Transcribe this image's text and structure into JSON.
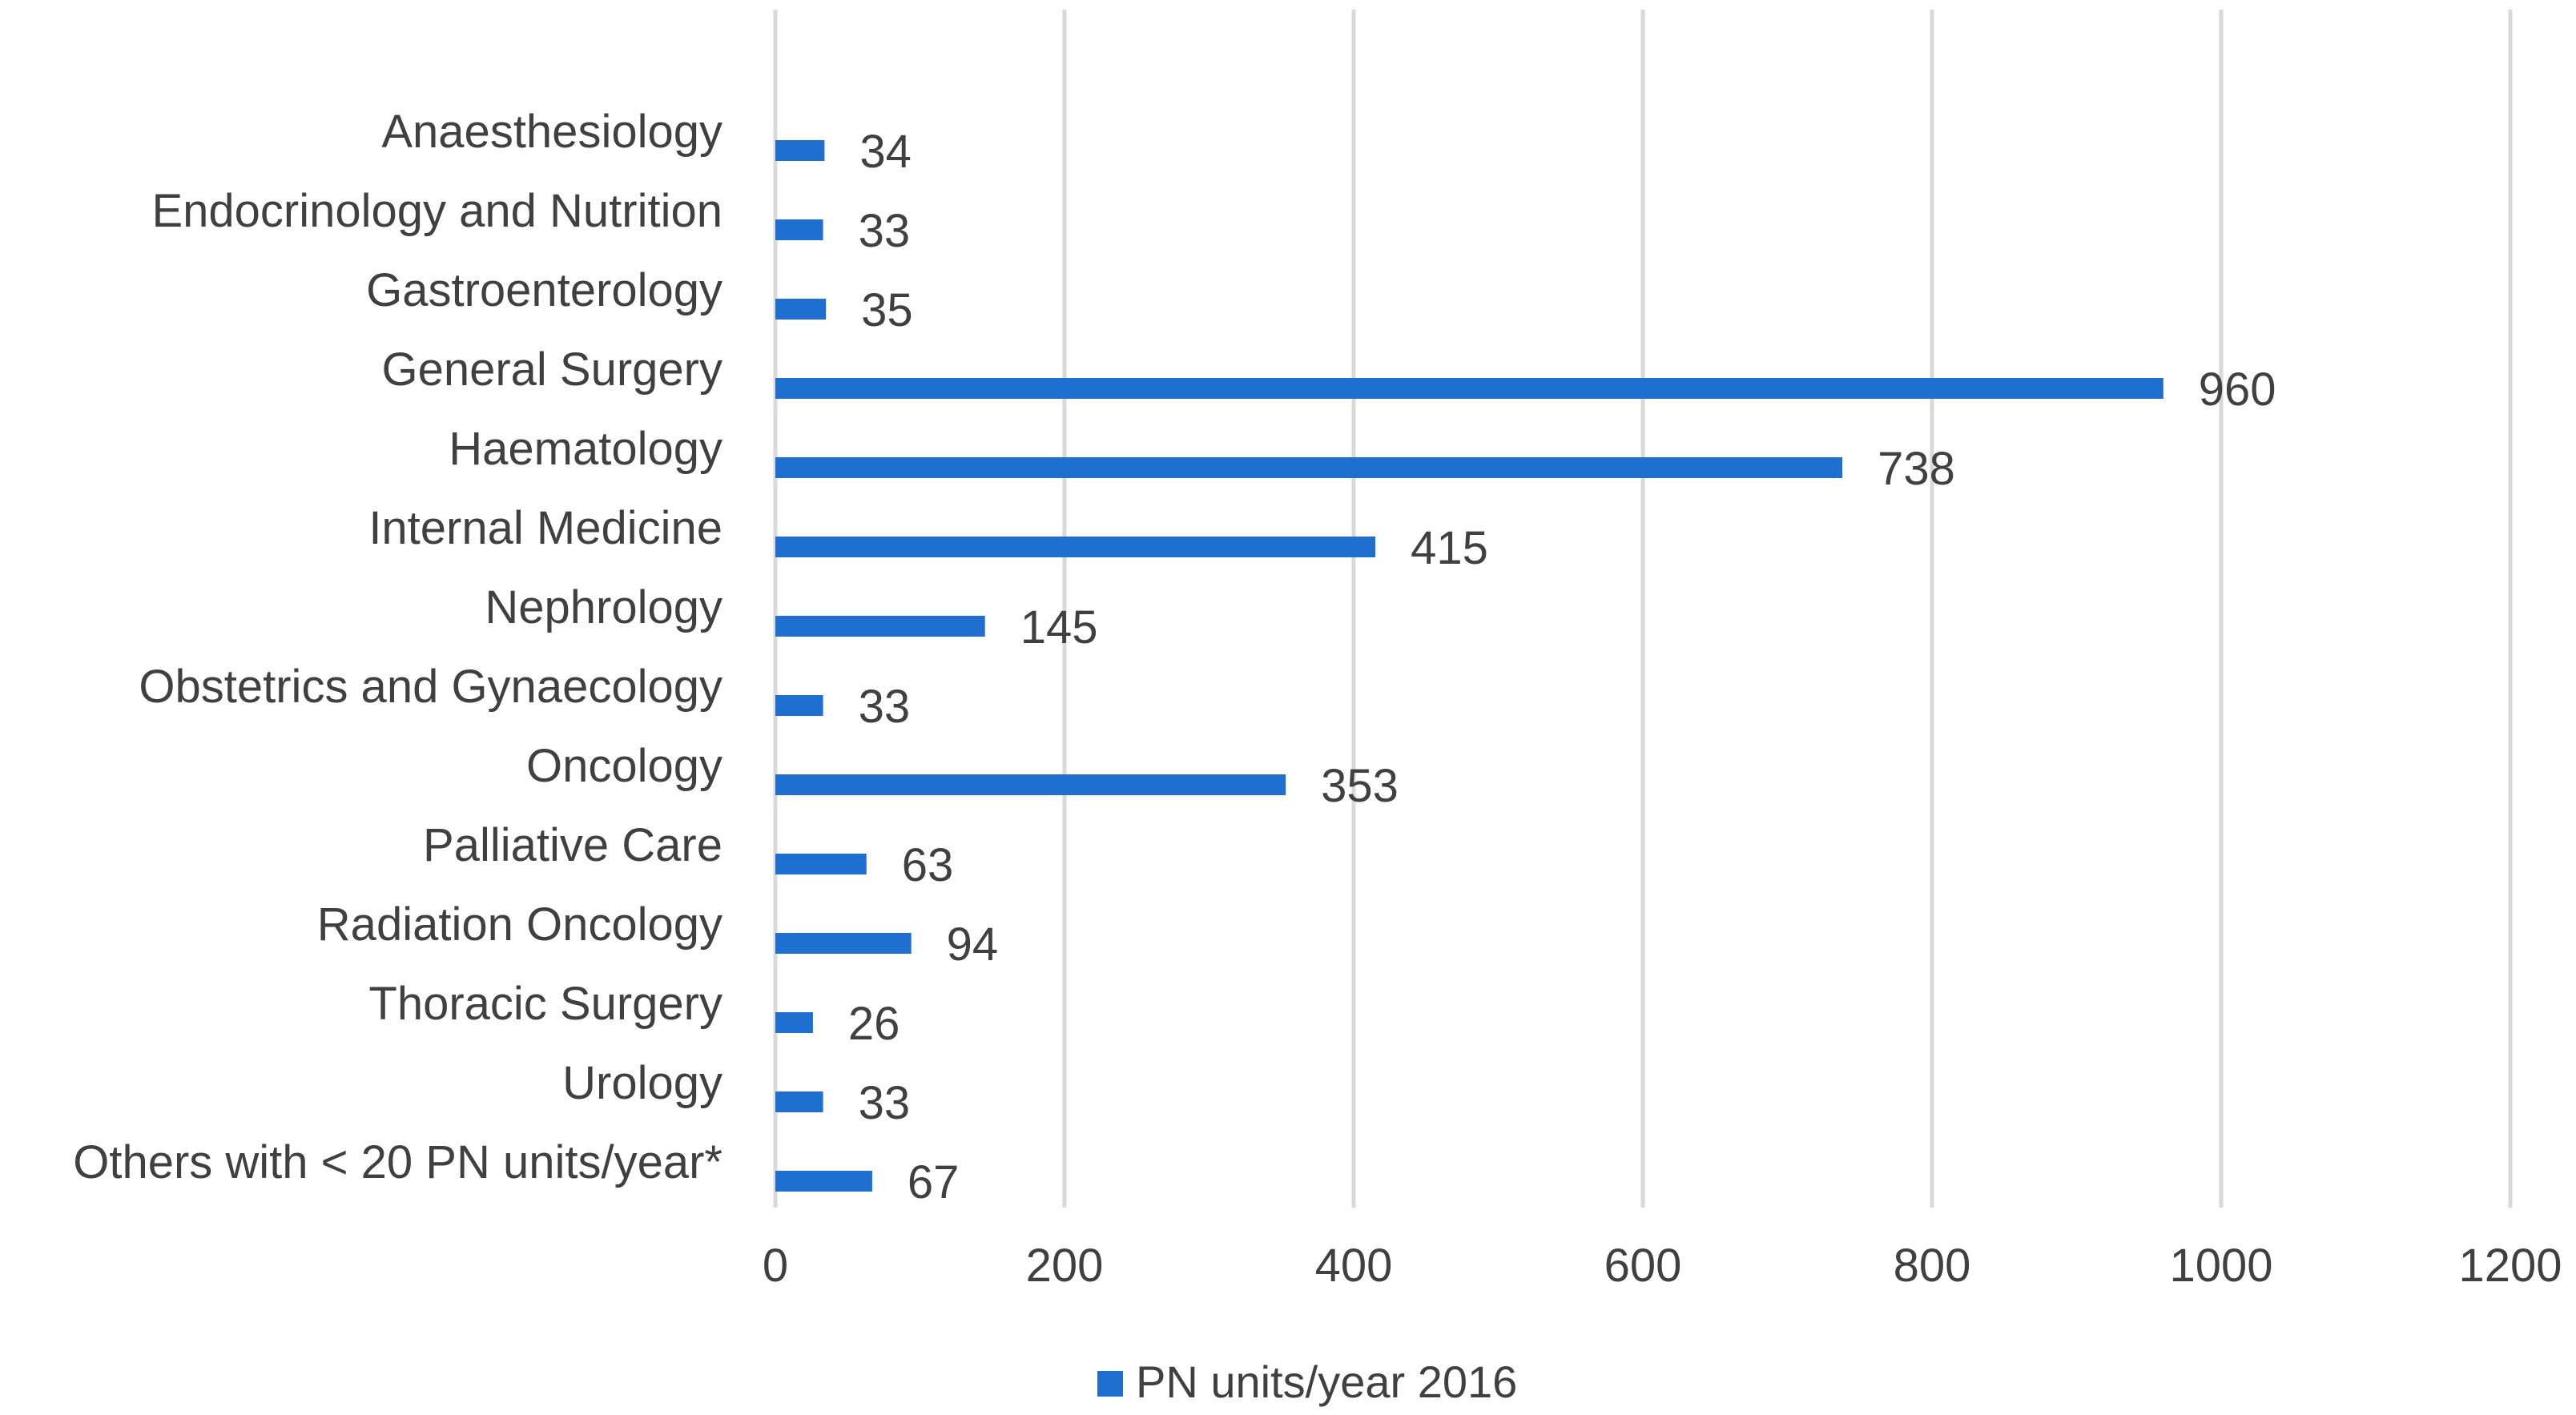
{
  "chart_data": {
    "type": "bar",
    "orientation": "horizontal",
    "title": "",
    "xlabel": "",
    "ylabel": "",
    "categories": [
      "Anaesthesiology",
      "Endocrinology and Nutrition",
      "Gastroenterology",
      "General Surgery",
      "Haematology",
      "Internal Medicine",
      "Nephrology",
      "Obstetrics and Gynaecology",
      "Oncology",
      "Palliative Care",
      "Radiation Oncology",
      "Thoracic Surgery",
      "Urology",
      "Others with < 20 PN units/year*"
    ],
    "series": [
      {
        "name": "PN units/year 2016",
        "color": "#1f6fd0",
        "values": [
          34,
          33,
          35,
          960,
          738,
          415,
          145,
          33,
          353,
          63,
          94,
          26,
          33,
          67
        ]
      }
    ],
    "xlim": [
      0,
      1200
    ],
    "xticks": [
      0,
      200,
      400,
      600,
      800,
      1000,
      1200
    ],
    "grid": true,
    "legend_position": "bottom-center"
  }
}
